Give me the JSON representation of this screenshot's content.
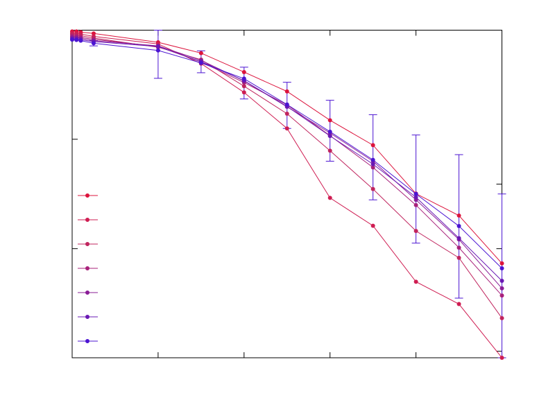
{
  "chart_data": {
    "type": "line",
    "title": "",
    "xlabel": "",
    "ylabel": "",
    "x_range": [
      0,
      1
    ],
    "y_range": [
      0,
      1
    ],
    "x_ticks": [
      0,
      0.2,
      0.4,
      0.6,
      0.8,
      1.0
    ],
    "y_ticks_left": [
      0,
      0.333,
      0.667
    ],
    "y_ticks_right": [
      0.02,
      0.333,
      0.53
    ],
    "grid": false,
    "legend": {
      "placement": "left",
      "show_labels": false
    },
    "x": [
      0,
      0.01,
      0.02,
      0.05,
      0.2,
      0.3,
      0.4,
      0.5,
      0.6,
      0.7,
      0.8,
      0.9,
      1.0
    ],
    "series": [
      {
        "color": "#dc143c",
        "values": [
          0.996,
          0.996,
          0.994,
          0.99,
          0.963,
          0.93,
          0.872,
          0.813,
          0.725,
          0.649,
          0.501,
          0.434,
          0.288
        ]
      },
      {
        "color": "#cf1d52",
        "values": [
          0.991,
          0.99,
          0.988,
          0.981,
          0.958,
          0.898,
          0.81,
          0.7,
          0.488,
          0.403,
          0.232,
          0.164,
          0.0
        ]
      },
      {
        "color": "#c0245e",
        "values": [
          0.987,
          0.985,
          0.983,
          0.976,
          0.948,
          0.91,
          0.829,
          0.745,
          0.632,
          0.515,
          0.387,
          0.305,
          0.121
        ]
      },
      {
        "color": "#a8207a",
        "values": [
          0.982,
          0.981,
          0.978,
          0.972,
          0.95,
          0.903,
          0.84,
          0.772,
          0.678,
          0.581,
          0.466,
          0.336,
          0.19
        ]
      },
      {
        "color": "#8a1c96",
        "values": [
          0.978,
          0.977,
          0.975,
          0.968,
          0.952,
          0.908,
          0.845,
          0.766,
          0.686,
          0.6,
          0.482,
          0.361,
          0.212
        ]
      },
      {
        "color": "#6a18b4",
        "values": [
          0.974,
          0.973,
          0.971,
          0.965,
          0.95,
          0.904,
          0.846,
          0.767,
          0.677,
          0.591,
          0.49,
          0.365,
          0.235
        ]
      },
      {
        "color": "#4b14d2",
        "values": [
          0.971,
          0.97,
          0.968,
          0.96,
          0.938,
          0.9,
          0.852,
          0.773,
          0.69,
          0.604,
          0.5,
          0.402,
          0.273
        ]
      }
    ],
    "error_bars": {
      "series_index": 6,
      "x": [
        0.05,
        0.2,
        0.3,
        0.4,
        0.5,
        0.6,
        0.7,
        0.8,
        0.9,
        1.0
      ],
      "low": [
        0.952,
        0.853,
        0.87,
        0.79,
        0.7,
        0.6,
        0.482,
        0.35,
        0.182,
        0.0
      ],
      "high": [
        0.968,
        1.0,
        0.937,
        0.887,
        0.841,
        0.786,
        0.742,
        0.68,
        0.62,
        0.5
      ]
    }
  }
}
